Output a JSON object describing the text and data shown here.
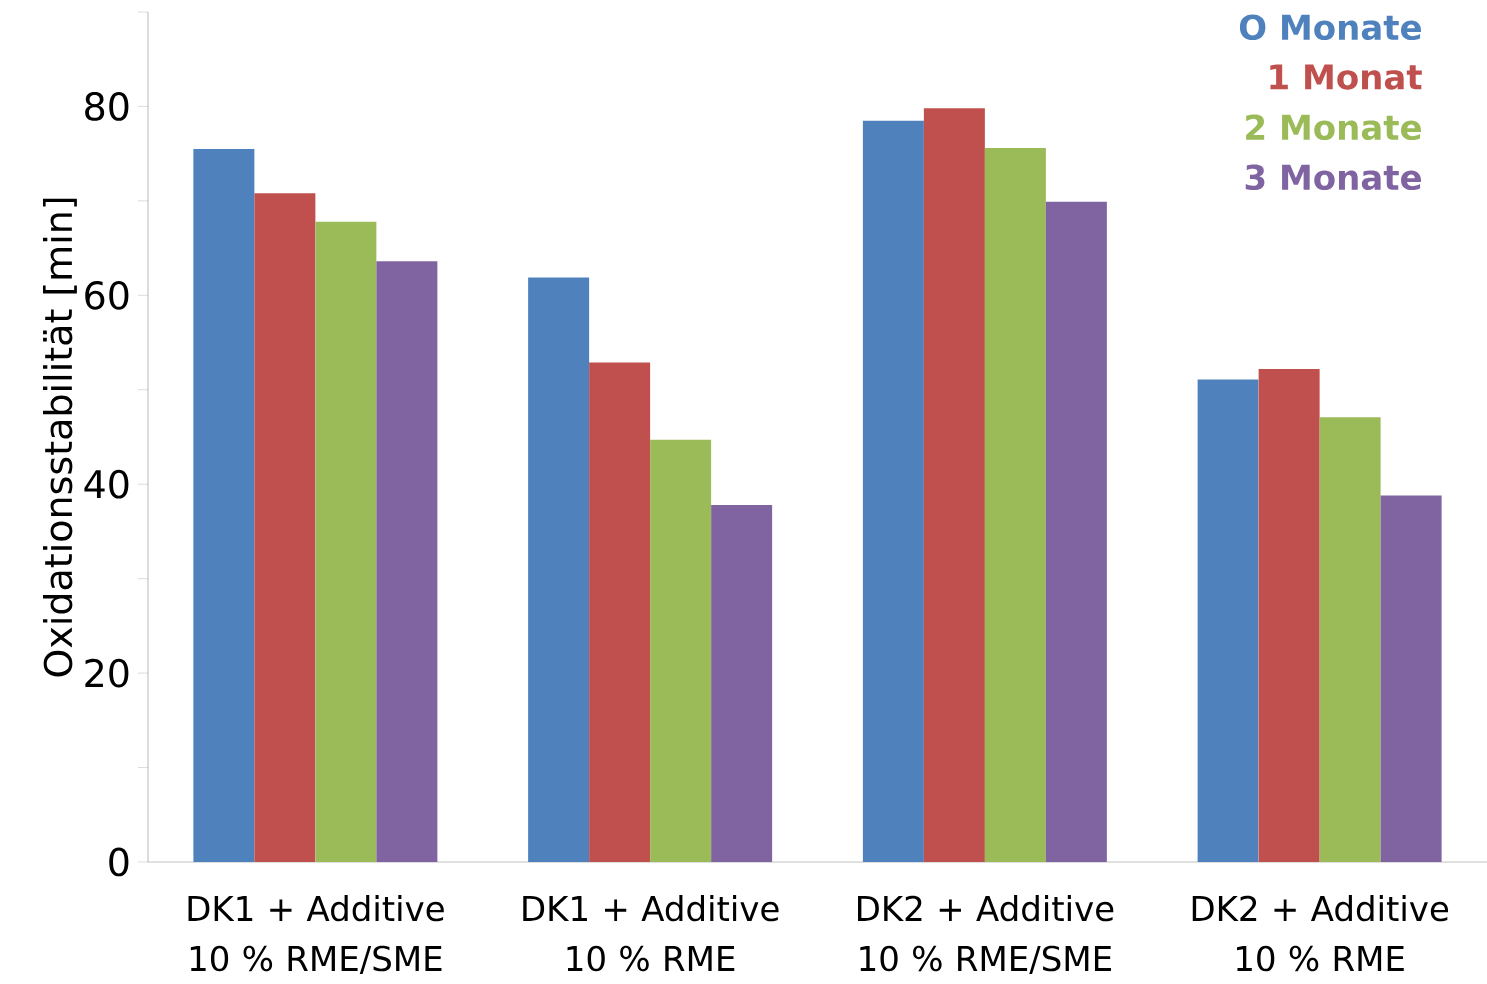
{
  "chart_data": {
    "type": "bar",
    "ylabel": "Oxidationsstabilität [min]",
    "categories": [
      "DK1 + Additive 10 % RME/SME",
      "DK1 + Additive 10 % RME",
      "DK2 + Additive 10 % RME/SME",
      "DK2 + Additive 10 % RME"
    ],
    "series": [
      {
        "name": "O Monate",
        "color": "#4f81bd",
        "values": [
          75.5,
          61.9,
          78.5,
          51.1
        ]
      },
      {
        "name": "1 Monat",
        "color": "#c0504d",
        "values": [
          70.8,
          52.9,
          79.8,
          52.2
        ]
      },
      {
        "name": "2 Monate",
        "color": "#9bbb59",
        "values": [
          67.8,
          44.7,
          75.6,
          47.1
        ]
      },
      {
        "name": "3 Monate",
        "color": "#8064a2",
        "values": [
          63.6,
          37.8,
          69.9,
          38.8
        ]
      }
    ],
    "ylim": [
      0,
      90
    ],
    "yticks": [
      0,
      {
        "value": 10,
        "label": null
      },
      20,
      {
        "value": 30,
        "label": null
      },
      40,
      {
        "value": 50,
        "label": null
      },
      60,
      {
        "value": 70,
        "label": null
      },
      80,
      {
        "value": 90,
        "label": null
      }
    ],
    "grid": false,
    "legend": "top right"
  }
}
